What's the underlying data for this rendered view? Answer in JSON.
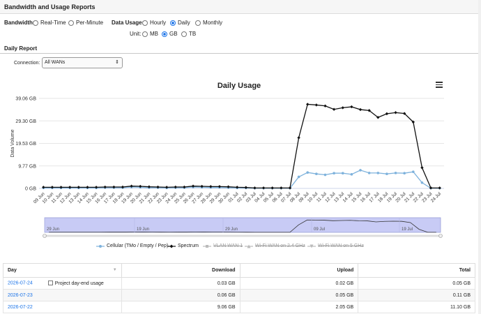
{
  "header": {
    "title": "Bandwidth and Usage Reports"
  },
  "bandwidth": {
    "label": "Bandwidth:",
    "options": [
      "Real-Time",
      "Per-Minute"
    ]
  },
  "usage": {
    "label": "Data Usage:",
    "options": [
      "Hourly",
      "Daily",
      "Monthly"
    ],
    "selected": "Daily"
  },
  "unit": {
    "label": "Unit:",
    "options": [
      "MB",
      "GB",
      "TB"
    ],
    "selected": "GB"
  },
  "section": {
    "title": "Daily Report"
  },
  "connection": {
    "label": "Connection:",
    "value": "All WANs"
  },
  "colors": {
    "cellular": "#7eb2dc",
    "spectrum": "#111111",
    "navigator": "#c8cbf5",
    "accent": "#1a73e8"
  },
  "icons": {
    "menu": "hamburger-menu-icon",
    "select_arrow": "updown-chevron-icon"
  },
  "chart_data": {
    "type": "line",
    "title": "Daily Usage",
    "ylabel": "Data Volume",
    "yticks": [
      "0 GB",
      "9.77 GB",
      "19.53 GB",
      "29.30 GB",
      "39.06 GB"
    ],
    "ylim": [
      0,
      39.06
    ],
    "categories": [
      "09 Jun",
      "10 Jun",
      "11 Jun",
      "12 Jun",
      "13 Jun",
      "14 Jun",
      "15 Jun",
      "16 Jun",
      "17 Jun",
      "18 Jun",
      "19 Jun",
      "20 Jun",
      "21 Jun",
      "22 Jun",
      "23 Jun",
      "24 Jun",
      "25 Jun",
      "26 Jun",
      "27 Jun",
      "28 Jun",
      "29 Jun",
      "30 Jun",
      "01 Jul",
      "02 Jul",
      "03 Jul",
      "04 Jul",
      "05 Jul",
      "06 Jul",
      "07 Jul",
      "08 Jul",
      "09 Jul",
      "10 Jul",
      "11 Jul",
      "12 Jul",
      "13 Jul",
      "14 Jul",
      "15 Jul",
      "16 Jul",
      "17 Jul",
      "18 Jul",
      "19 Jul",
      "20 Jul",
      "21 Jul",
      "22 Jul",
      "23 Jul",
      "24 Jul"
    ],
    "series": [
      {
        "name": "Cellular (TMo / Empty / Pep)",
        "visible": true,
        "values": [
          0.2,
          0.2,
          0.2,
          0.2,
          0.2,
          0.2,
          0.2,
          0.3,
          0.3,
          0.3,
          0.6,
          0.5,
          0.3,
          0.3,
          0.2,
          0.3,
          0.3,
          0.6,
          0.5,
          0.4,
          0.4,
          0.3,
          0.2,
          0.2,
          0.1,
          0.1,
          0.1,
          0.1,
          0.1,
          5,
          6.9,
          6.3,
          5.9,
          6.6,
          6.6,
          6.1,
          7.9,
          6.7,
          6.7,
          6.3,
          6.7,
          6.6,
          7.2,
          2.5,
          0.1,
          0.1
        ]
      },
      {
        "name": "Spectrum",
        "visible": true,
        "values": [
          0.5,
          0.5,
          0.5,
          0.5,
          0.5,
          0.5,
          0.5,
          0.6,
          0.6,
          0.6,
          1.0,
          0.9,
          0.7,
          0.6,
          0.5,
          0.6,
          0.6,
          1.0,
          0.9,
          0.8,
          0.8,
          0.7,
          0.5,
          0.4,
          0.2,
          0.2,
          0.2,
          0.2,
          0.2,
          22,
          36.5,
          36.2,
          35.8,
          34.3,
          35.0,
          35.4,
          34.2,
          33.8,
          30.8,
          32.4,
          32.9,
          32.5,
          28.8,
          9,
          0.2,
          0.2
        ]
      },
      {
        "name": "VLAN WAN 1",
        "visible": false
      },
      {
        "name": "Wi-Fi WAN on 2.4 GHz",
        "visible": false
      },
      {
        "name": "Wi-Fi WAN on 5 GHz",
        "visible": false
      }
    ],
    "navigator_labels": [
      "29 Jun",
      "19 Jun",
      "29 Jun",
      "09 Jul",
      "19 Jul"
    ]
  },
  "table": {
    "headers": [
      "Day",
      "Download",
      "Upload",
      "Total"
    ],
    "project_label": "Project day-end usage",
    "rows": [
      {
        "day": "2026-07-24",
        "download": "0.03 GB",
        "upload": "0.02 GB",
        "total": "0.05 GB"
      },
      {
        "day": "2026-07-23",
        "download": "0.06 GB",
        "upload": "0.05 GB",
        "total": "0.11 GB"
      },
      {
        "day": "2026-07-22",
        "download": "9.06 GB",
        "upload": "2.05 GB",
        "total": "11.10 GB"
      }
    ]
  }
}
